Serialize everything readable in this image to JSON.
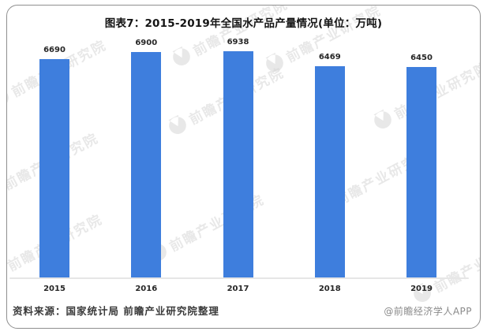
{
  "page": {
    "source": "资料来源：国家统计局 前瞻产业研究院整理",
    "credit": "@前瞻经济学人APP"
  },
  "watermark": {
    "text": "前瞻产业研究院",
    "logo": "qianzhan-logo",
    "color": "#d2d2d2"
  },
  "chart_data": {
    "type": "bar",
    "title": "图表7：2015-2019年全国水产品产量情况(单位：万吨)",
    "categories": [
      "2015",
      "2016",
      "2017",
      "2018",
      "2019"
    ],
    "values": [
      6690,
      6900,
      6938,
      6469,
      6450
    ],
    "unit": "万吨",
    "xlabel": "",
    "ylabel": "",
    "ylim": [
      0,
      7000
    ],
    "bar_color": "#3e7edd",
    "axis_line_color": "#e6e6e6",
    "grid": false,
    "legend": false,
    "value_labels": true
  }
}
